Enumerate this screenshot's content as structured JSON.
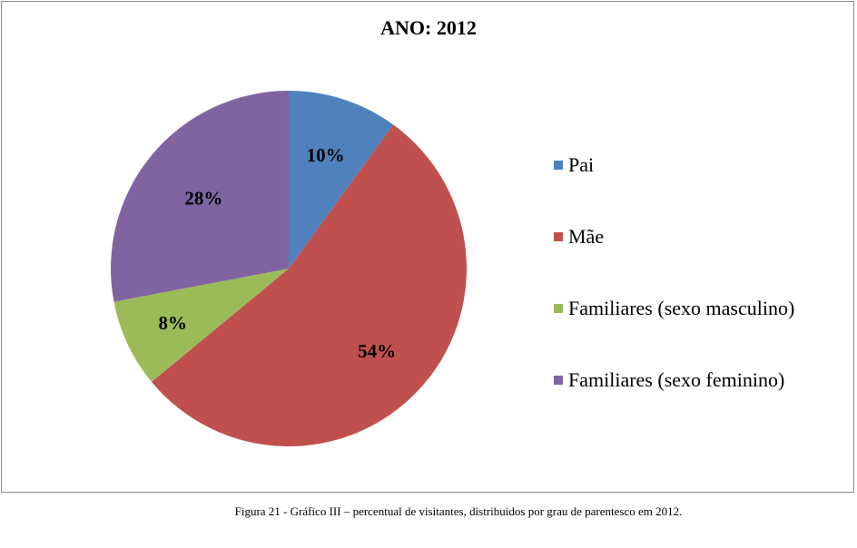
{
  "chart_data": {
    "type": "pie",
    "title": "ANO: 2012",
    "categories": [
      "Pai",
      "Mãe",
      "Familiares (sexo masculino)",
      "Familiares (sexo feminino)"
    ],
    "values": [
      10,
      54,
      8,
      28
    ],
    "labels": [
      "10%",
      "54%",
      "8%",
      "28%"
    ],
    "colors": [
      "#4F81BD",
      "#C0504D",
      "#9BBB59",
      "#8064A2"
    ],
    "legend_position": "right"
  },
  "caption": "Figura 21 - Gráfico III – percentual de visitantes, distribuidos por grau de parentesco em 2012."
}
